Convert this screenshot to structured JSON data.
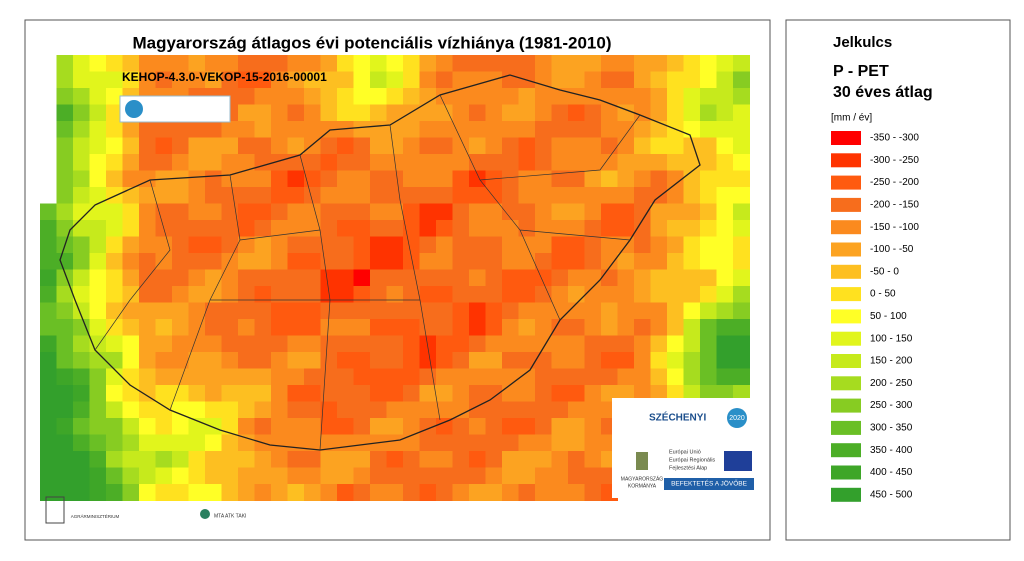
{
  "title": "Magyarország átlagos évi potenciális vízhiánya (1981-2010)",
  "subtitle": "KEHOP-4.3.0-VEKOP-15-2016-00001",
  "legend": {
    "heading": "Jelkulcs",
    "title_lines": [
      "P - PET",
      "30 éves átlag"
    ],
    "unit": "[mm / év]",
    "items": [
      {
        "label": "-350 - -300",
        "color": "#ff0000"
      },
      {
        "label": "-300 - -250",
        "color": "#ff3300"
      },
      {
        "label": "-250 - -200",
        "color": "#ff5a0f"
      },
      {
        "label": "-200 - -150",
        "color": "#f76d1c"
      },
      {
        "label": "-150 - -100",
        "color": "#fb8a1e"
      },
      {
        "label": "-100 - -50",
        "color": "#fca321"
      },
      {
        "label": "-50 - 0",
        "color": "#fdbf21"
      },
      {
        "label": "0 - 50",
        "color": "#ffe11f"
      },
      {
        "label": "50 - 100",
        "color": "#ffff26"
      },
      {
        "label": "100 - 150",
        "color": "#e1f51c"
      },
      {
        "label": "150 - 200",
        "color": "#c6ea1c"
      },
      {
        "label": "200 - 250",
        "color": "#a6dc1f"
      },
      {
        "label": "250 - 300",
        "color": "#87cc22"
      },
      {
        "label": "300 - 350",
        "color": "#6abf25"
      },
      {
        "label": "350 - 400",
        "color": "#4cae26"
      },
      {
        "label": "400 - 450",
        "color": "#3ea628"
      },
      {
        "label": "450 - 500",
        "color": "#33a02c"
      }
    ]
  },
  "logos": {
    "szechenyi": "SZÉCHENYI",
    "year": "2020",
    "eu_lines": [
      "Európai Unió",
      "Európai Regionális",
      "Fejlesztési Alap"
    ],
    "slogan": "BEFEKTETÉS A JÖVŐBE",
    "government": [
      "MAGYARORSZÁG",
      "KORMÁNYA"
    ],
    "ministry": "AGRÁRMINISZTÉRIUM",
    "institute": "MTA ATK TAKI"
  }
}
